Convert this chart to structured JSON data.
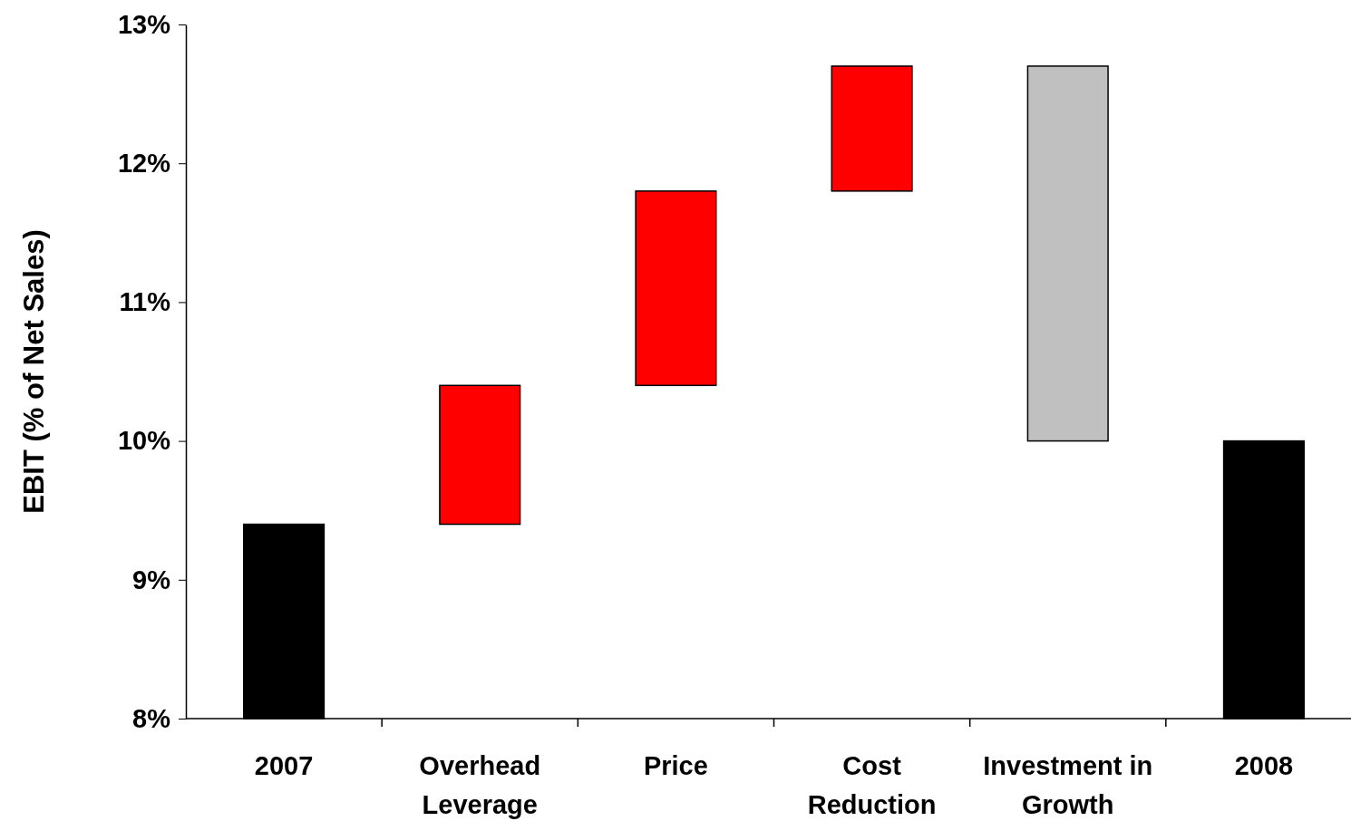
{
  "chart_data": {
    "type": "bar",
    "ylabel": "EBIT (% of Net Sales)",
    "categories": [
      "2007",
      "Overhead Leverage",
      "Price",
      "Cost Reduction",
      "Investment in Growth",
      "2008"
    ],
    "values": [
      1.4,
      1.0,
      1.4,
      0.9,
      2.7,
      2.0
    ],
    "base": [
      8,
      9.4,
      10.4,
      11.8,
      10.0,
      8
    ],
    "colors": [
      "#000000",
      "#ff0000",
      "#ff0000",
      "#ff0000",
      "#c0c0c0",
      "#000000"
    ],
    "ylim": [
      8,
      13
    ],
    "yticks": [
      {
        "value": 8,
        "label": "8%"
      },
      {
        "value": 9,
        "label": "9%"
      },
      {
        "value": 10,
        "label": "10%"
      },
      {
        "value": 11,
        "label": "11%"
      },
      {
        "value": 12,
        "label": "12%"
      },
      {
        "value": 13,
        "label": "13%"
      }
    ],
    "grid": false
  }
}
